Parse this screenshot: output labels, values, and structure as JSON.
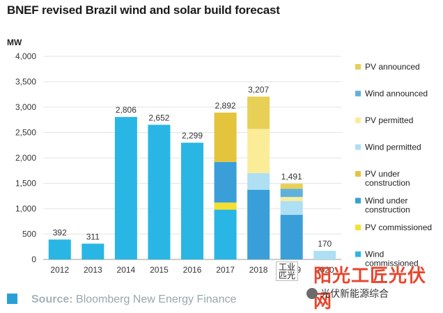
{
  "title": "BNEF revised Brazil wind and solar build forecast",
  "unit": "MW",
  "chart_data": {
    "type": "bar",
    "stacked": true,
    "title": "BNEF revised Brazil wind and solar build forecast",
    "ylabel": "MW",
    "ylim": [
      0,
      4000
    ],
    "yticks": [
      "0",
      "500",
      "1,000",
      "1,500",
      "2,000",
      "2,500",
      "3,000",
      "3,500",
      "4,000"
    ],
    "ytick_values": [
      0,
      500,
      1000,
      1500,
      2000,
      2500,
      3000,
      3500,
      4000
    ],
    "grid": true,
    "legend_position": "right",
    "categories": [
      "2012",
      "2013",
      "2014",
      "2015",
      "2016",
      "2017",
      "2018",
      "2019",
      "2020"
    ],
    "totals": [
      "392",
      "311",
      "2,806",
      "2,652",
      "2,299",
      "2,892",
      "3,207",
      "1,491",
      "170"
    ],
    "series": [
      {
        "name": "Wind commissioned",
        "color": "#29b6e4",
        "values": [
          392,
          311,
          2806,
          2652,
          2299,
          980,
          0,
          0,
          0
        ]
      },
      {
        "name": "PV commissioned",
        "color": "#f5e030",
        "values": [
          0,
          0,
          0,
          0,
          0,
          140,
          0,
          0,
          0
        ]
      },
      {
        "name": "Wind under construction",
        "color": "#3a9fd8",
        "values": [
          0,
          0,
          0,
          0,
          0,
          800,
          1370,
          880,
          0
        ]
      },
      {
        "name": "PV under construction",
        "color": "#e3c43c",
        "values": [
          0,
          0,
          0,
          0,
          0,
          972,
          0,
          0,
          0
        ]
      },
      {
        "name": "Wind permitted",
        "color": "#aedff3",
        "values": [
          0,
          0,
          0,
          0,
          0,
          0,
          330,
          270,
          170
        ]
      },
      {
        "name": "PV permitted",
        "color": "#fbec98",
        "values": [
          0,
          0,
          0,
          0,
          0,
          0,
          870,
          80,
          0
        ]
      },
      {
        "name": "Wind announced",
        "color": "#5eb1dc",
        "values": [
          0,
          0,
          0,
          0,
          0,
          0,
          0,
          161,
          0
        ]
      },
      {
        "name": "PV announced",
        "color": "#e8cf55",
        "values": [
          0,
          0,
          0,
          0,
          0,
          0,
          637,
          100,
          0
        ]
      }
    ],
    "legend": [
      {
        "label": [
          "PV announced"
        ],
        "color": "#e8cf55"
      },
      {
        "label": [
          "Wind announced"
        ],
        "color": "#5eb1dc"
      },
      {
        "label": [
          "PV permitted"
        ],
        "color": "#fbec98"
      },
      {
        "label": [
          "Wind permitted"
        ],
        "color": "#aedff3"
      },
      {
        "label": [
          "PV under",
          "construction"
        ],
        "color": "#e3c43c"
      },
      {
        "label": [
          "Wind under",
          "construction"
        ],
        "color": "#3a9fd8"
      },
      {
        "label": [
          "PV commissioned"
        ],
        "color": "#f5e030"
      },
      {
        "label": [
          "Wind",
          "commissioned"
        ],
        "color": "#29b6e4"
      }
    ]
  },
  "source": {
    "label": "Source:",
    "text": " Bloomberg New Energy Finance"
  },
  "watermark": {
    "stamp_line1": "工业",
    "stamp_line2": "匹光",
    "brand": "阳光工匠光伏网",
    "wechat": "光伏新能源综合"
  }
}
